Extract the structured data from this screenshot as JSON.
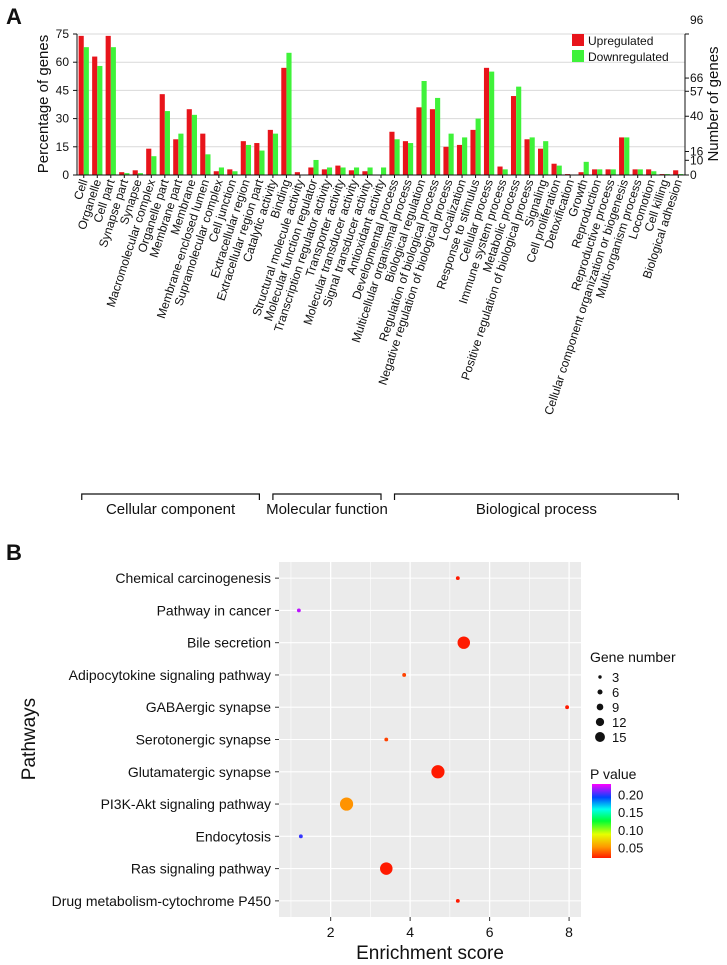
{
  "panels": {
    "a_label": "A",
    "b_label": "B"
  },
  "colors": {
    "up": "#e8141b",
    "down": "#3ff23a",
    "panel_bg": "#ebebeb",
    "grid": "#ffffff"
  },
  "chart_data": [
    {
      "type": "bar",
      "title": "",
      "ylabel": "Percentage of genes",
      "y2label": "Number of genes",
      "ylim": [
        0,
        75
      ],
      "yticks": [
        0,
        15,
        30,
        45,
        60,
        75
      ],
      "y2ticks": [
        "0",
        "10",
        "16",
        "40",
        "57",
        "66",
        "96"
      ],
      "y2ticks_pct": [
        0,
        10.42,
        16.67,
        41.67,
        59.38,
        68.75,
        100
      ],
      "legend": [
        "Upregulated",
        "Downregulated"
      ],
      "categories": [
        "Cell",
        "Organelle",
        "Cell part",
        "Synapse part",
        "Synapse",
        "Macromolecular complex",
        "Organelle part",
        "Membrane part",
        "Membrane",
        "Membrane-enclosed lumen",
        "Supramolecular complex",
        "Cell junction",
        "Extracellular region",
        "Extracellular region part",
        "Catalytic activity",
        "Binding",
        "Structural molecule activity",
        "Molecular function regulator",
        "Transcription regulator activity",
        "Transporter activity",
        "Molecular transducer activity",
        "Signal transducer activity",
        "Antioxidant activity",
        "Developmental process",
        "Multicellular organismal process",
        "Biological regulation",
        "Regulation of biological process",
        "Negative regulation of biological process",
        "Localization",
        "Response to stimulus",
        "Cellular process",
        "Immune system process",
        "Metabolic process",
        "Positive regulation of biological process",
        "Signaling",
        "Cell proliferation",
        "Detoxification",
        "Growth",
        "Reproduction",
        "Reproductive process",
        "Cellular component organization or biogenesis",
        "Multi-organism process",
        "Locomotion",
        "Cell killing",
        "Biological adhesion"
      ],
      "series": [
        {
          "name": "Upregulated",
          "values": [
            74,
            63,
            74,
            1.5,
            2.5,
            14,
            43,
            19,
            35,
            22,
            2,
            3,
            18,
            17,
            24,
            57,
            1.5,
            4,
            3,
            5,
            2.5,
            2,
            0,
            23,
            18,
            36,
            35,
            15,
            16,
            24,
            57,
            4.5,
            42,
            19,
            14,
            6,
            0.5,
            1.5,
            3,
            3,
            20,
            3,
            3,
            0.5,
            2.5
          ]
        },
        {
          "name": "Downregulated",
          "values": [
            68,
            58,
            68,
            1,
            1,
            10,
            34,
            22,
            32,
            11,
            4,
            2,
            16,
            13,
            22,
            65,
            0,
            8,
            4,
            4,
            4,
            4,
            4,
            19,
            17,
            50,
            41,
            22,
            20,
            30,
            55,
            3,
            47,
            20,
            18,
            5,
            0,
            7,
            3,
            3,
            20,
            3,
            2,
            0.5,
            0.5
          ]
        }
      ],
      "groups": [
        {
          "label": "Cellular component",
          "from": 0,
          "to": 13
        },
        {
          "label": "Molecular function",
          "from": 14,
          "to": 22
        },
        {
          "label": "Biological process",
          "from": 23,
          "to": 44
        }
      ]
    },
    {
      "type": "scatter",
      "title": "",
      "xlabel": "Enrichment score",
      "ylabel": "Pathways",
      "xlim": [
        0.7,
        8.3
      ],
      "xticks": [
        2,
        4,
        6,
        8
      ],
      "size_legend_title": "Gene number",
      "size_legend": [
        3,
        6,
        9,
        12,
        15
      ],
      "color_legend_title": "P value",
      "color_range": [
        0.02,
        0.23
      ],
      "color_ticks": [
        "0.20",
        "0.15",
        "0.10",
        "0.05"
      ],
      "color_tick_values": [
        0.2,
        0.15,
        0.1,
        0.05
      ],
      "points": [
        {
          "pathway": "Chemical carcinogenesis",
          "x": 5.2,
          "genes": 2,
          "p": 0.02
        },
        {
          "pathway": "Pathway in cancer",
          "x": 1.2,
          "genes": 2,
          "p": 0.22
        },
        {
          "pathway": "Bile secretion",
          "x": 5.35,
          "genes": 14,
          "p": 0.02
        },
        {
          "pathway": "Adipocytokine signaling pathway",
          "x": 3.85,
          "genes": 2,
          "p": 0.03
        },
        {
          "pathway": "GABAergic synapse",
          "x": 7.95,
          "genes": 2,
          "p": 0.02
        },
        {
          "pathway": "Serotonergic synapse",
          "x": 3.4,
          "genes": 2,
          "p": 0.03
        },
        {
          "pathway": "Glutamatergic synapse",
          "x": 4.7,
          "genes": 15,
          "p": 0.02
        },
        {
          "pathway": "PI3K-Akt signaling pathway",
          "x": 2.4,
          "genes": 15,
          "p": 0.05
        },
        {
          "pathway": "Endocytosis",
          "x": 1.25,
          "genes": 2,
          "p": 0.2
        },
        {
          "pathway": "Ras signaling pathway",
          "x": 3.4,
          "genes": 14,
          "p": 0.02
        },
        {
          "pathway": "Drug metabolism-cytochrome P450",
          "x": 5.2,
          "genes": 2,
          "p": 0.02
        }
      ]
    }
  ]
}
